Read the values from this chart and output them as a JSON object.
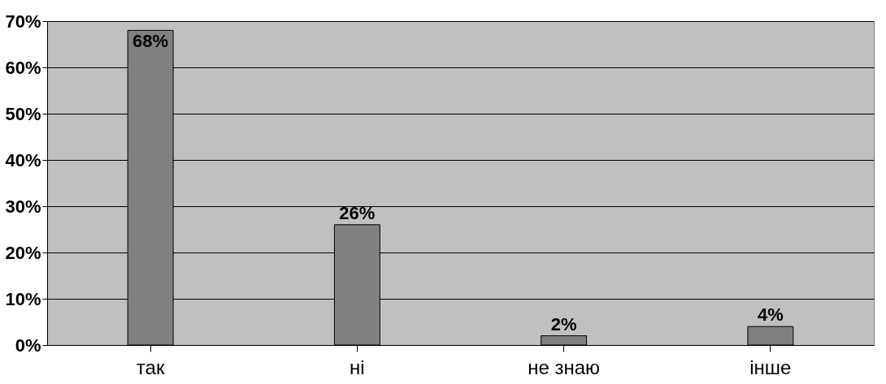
{
  "chart_data": {
    "type": "bar",
    "categories": [
      "так",
      "ні",
      "не знаю",
      "інше"
    ],
    "values": [
      68,
      26,
      2,
      4
    ],
    "color": "#808080",
    "value_labels": [
      "68%",
      "26%",
      "2%",
      "4%"
    ],
    "ylim": [
      0,
      70
    ],
    "yticks": [
      {
        "value": 0,
        "label": "0%"
      },
      {
        "value": 10,
        "label": "10%"
      },
      {
        "value": 20,
        "label": "20%"
      },
      {
        "value": 30,
        "label": "30%"
      },
      {
        "value": 40,
        "label": "40%"
      },
      {
        "value": 50,
        "label": "50%"
      },
      {
        "value": 60,
        "label": "60%"
      },
      {
        "value": 70,
        "label": "70%"
      }
    ],
    "grid": "y"
  }
}
